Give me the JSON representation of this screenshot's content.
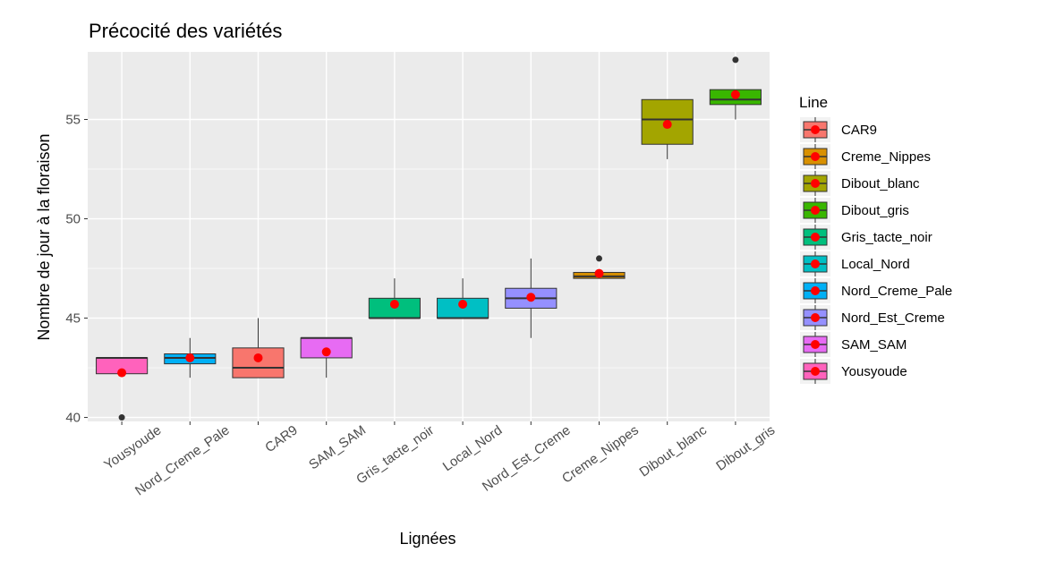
{
  "chart_data": {
    "type": "boxplot",
    "title": "Précocité des variétés",
    "xlabel": "Lignées",
    "ylabel": "Nombre de jour à la floraison",
    "ylim": [
      39.8,
      58.4
    ],
    "yticks": [
      40,
      45,
      50,
      55
    ],
    "grid": true,
    "legend": {
      "title": "Line",
      "position": "right",
      "items": [
        {
          "label": "CAR9",
          "color": "#F8766D"
        },
        {
          "label": "Creme_Nippes",
          "color": "#D89000"
        },
        {
          "label": "Dibout_blanc",
          "color": "#A3A500"
        },
        {
          "label": "Dibout_gris",
          "color": "#39B600"
        },
        {
          "label": "Gris_tacte_noir",
          "color": "#00BF7D"
        },
        {
          "label": "Local_Nord",
          "color": "#00BFC4"
        },
        {
          "label": "Nord_Creme_Pale",
          "color": "#00B0F6"
        },
        {
          "label": "Nord_Est_Creme",
          "color": "#9590FF"
        },
        {
          "label": "SAM_SAM",
          "color": "#E76BF3"
        },
        {
          "label": "Yousyoude",
          "color": "#FF62BC"
        }
      ]
    },
    "categories": [
      "Yousyoude",
      "Nord_Creme_Pale",
      "CAR9",
      "SAM_SAM",
      "Gris_tacte_noir",
      "Local_Nord",
      "Nord_Est_Creme",
      "Creme_Nippes",
      "Dibout_blanc",
      "Dibout_gris"
    ],
    "boxes": [
      {
        "name": "Yousyoude",
        "color": "#FF62BC",
        "whisker_low": 42.2,
        "q1": 42.2,
        "median": 43,
        "q3": 43,
        "whisker_high": 43,
        "mean": 42.25,
        "outliers": [
          40
        ]
      },
      {
        "name": "Nord_Creme_Pale",
        "color": "#00B0F6",
        "whisker_low": 42,
        "q1": 42.7,
        "median": 43,
        "q3": 43.2,
        "whisker_high": 44,
        "mean": 43,
        "outliers": []
      },
      {
        "name": "CAR9",
        "color": "#F8766D",
        "whisker_low": 42,
        "q1": 42,
        "median": 42.5,
        "q3": 43.5,
        "whisker_high": 45,
        "mean": 43,
        "outliers": []
      },
      {
        "name": "SAM_SAM",
        "color": "#E76BF3",
        "whisker_low": 42,
        "q1": 43,
        "median": 44,
        "q3": 44,
        "whisker_high": 44,
        "mean": 43.3,
        "outliers": []
      },
      {
        "name": "Gris_tacte_noir",
        "color": "#00BF7D",
        "whisker_low": 45,
        "q1": 45,
        "median": 45,
        "q3": 46,
        "whisker_high": 47,
        "mean": 45.7,
        "outliers": []
      },
      {
        "name": "Local_Nord",
        "color": "#00BFC4",
        "whisker_low": 45,
        "q1": 45,
        "median": 45,
        "q3": 46,
        "whisker_high": 47,
        "mean": 45.7,
        "outliers": []
      },
      {
        "name": "Nord_Est_Creme",
        "color": "#9590FF",
        "whisker_low": 44,
        "q1": 45.5,
        "median": 46,
        "q3": 46.5,
        "whisker_high": 48,
        "mean": 46.05,
        "outliers": []
      },
      {
        "name": "Creme_Nippes",
        "color": "#D89000",
        "whisker_low": 47,
        "q1": 47,
        "median": 47.1,
        "q3": 47.3,
        "whisker_high": 47.3,
        "mean": 47.25,
        "outliers": [
          48
        ]
      },
      {
        "name": "Dibout_blanc",
        "color": "#A3A500",
        "whisker_low": 53,
        "q1": 53.75,
        "median": 55,
        "q3": 56,
        "whisker_high": 56,
        "mean": 54.75,
        "outliers": []
      },
      {
        "name": "Dibout_gris",
        "color": "#39B600",
        "whisker_low": 55,
        "q1": 55.75,
        "median": 56,
        "q3": 56.5,
        "whisker_high": 56.5,
        "mean": 56.25,
        "outliers": [
          58
        ]
      }
    ]
  }
}
